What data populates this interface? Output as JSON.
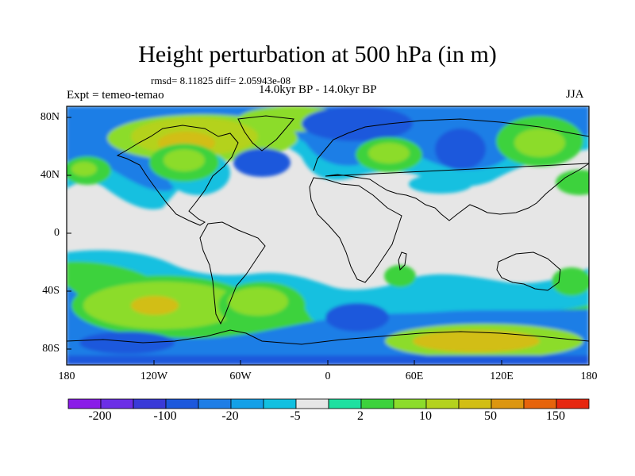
{
  "title": "Height perturbation at 500 hPa (in m)",
  "stats_line": "rmsd= 8.11825 diff= 2.05943e-08",
  "experiment": "Expt = temeo-temao",
  "period": "14.0kyr BP - 14.0kyr BP",
  "season": "JJA",
  "map": {
    "lat_ticks": [
      "80N",
      "40N",
      "0",
      "40S",
      "80S"
    ],
    "lon_ticks": [
      "180",
      "120W",
      "60W",
      "0",
      "60E",
      "120E",
      "180"
    ]
  },
  "colorbar": {
    "colors": [
      "#8a1ce8",
      "#6c2ee6",
      "#3a3ad8",
      "#1c58dc",
      "#1e7ee6",
      "#14a0e8",
      "#12c0e0",
      "#e6e6e6",
      "#1ee0a0",
      "#3cd23c",
      "#8cdc2c",
      "#b4d21e",
      "#d2be14",
      "#dc9610",
      "#e6640c",
      "#e62810"
    ],
    "labels": [
      "-200",
      "-100",
      "-20",
      "-5",
      "2",
      "10",
      "50",
      "150"
    ]
  }
}
